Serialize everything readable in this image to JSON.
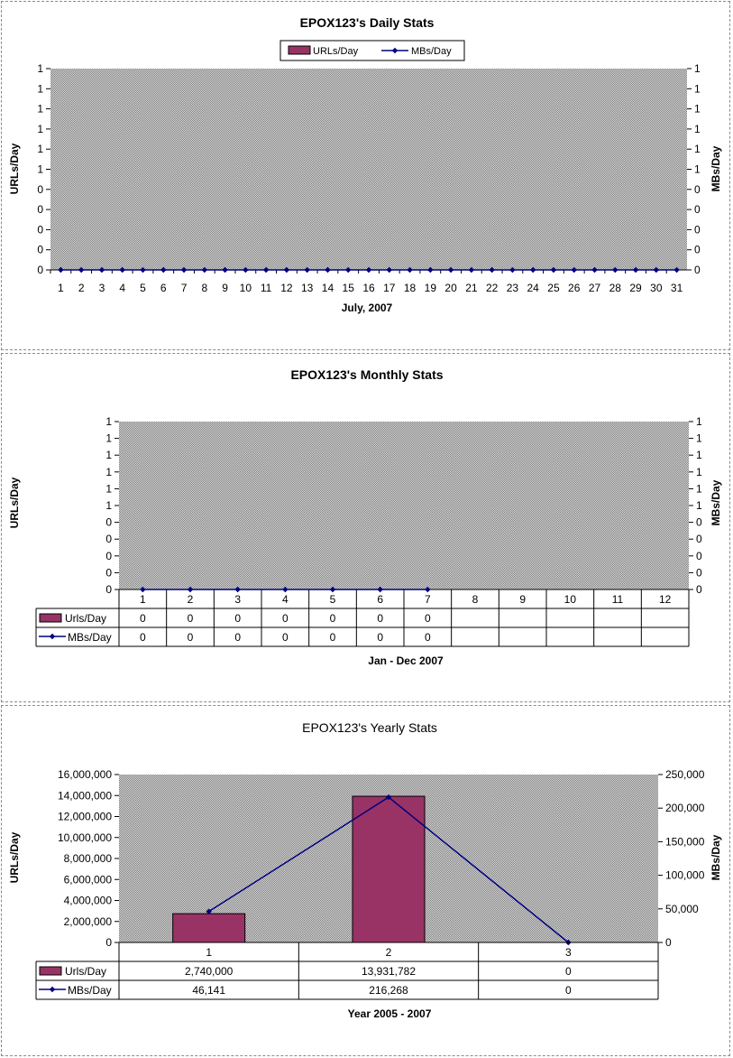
{
  "colors": {
    "bar_fill": "#993366",
    "line": "#000080",
    "plot_bg": "#c0c0c0",
    "dot": "#808080"
  },
  "legend": {
    "urls_label": "URLs/Day",
    "mbs_label": "MBs/Day"
  },
  "table_rows": {
    "urls_label": "Urls/Day",
    "mbs_label": "MBs/Day"
  },
  "chart_data": [
    {
      "id": "daily",
      "type": "bar",
      "title": "EPOX123's Daily Stats",
      "xlabel": "July, 2007",
      "ylabel": "URLs/Day",
      "ylabel2": "MBs/Day",
      "legend_position": "top",
      "grid": false,
      "categories": [
        "1",
        "2",
        "3",
        "4",
        "5",
        "6",
        "7",
        "8",
        "9",
        "10",
        "11",
        "12",
        "13",
        "14",
        "15",
        "16",
        "17",
        "18",
        "19",
        "20",
        "21",
        "22",
        "23",
        "24",
        "25",
        "26",
        "27",
        "28",
        "29",
        "30",
        "31"
      ],
      "y_ticks": [
        "0",
        "0",
        "0",
        "0",
        "0",
        "1",
        "1",
        "1",
        "1",
        "1",
        "1"
      ],
      "y2_ticks": [
        "0",
        "0",
        "0",
        "0",
        "0",
        "1",
        "1",
        "1",
        "1",
        "1",
        "1"
      ],
      "series": [
        {
          "name": "URLs/Day",
          "type": "bar",
          "axis": "left",
          "values": [
            0,
            0,
            0,
            0,
            0,
            0,
            0,
            0,
            0,
            0,
            0,
            0,
            0,
            0,
            0,
            0,
            0,
            0,
            0,
            0,
            0,
            0,
            0,
            0,
            0,
            0,
            0,
            0,
            0,
            0,
            0
          ]
        },
        {
          "name": "MBs/Day",
          "type": "line",
          "axis": "right",
          "values": [
            0,
            0,
            0,
            0,
            0,
            0,
            0,
            0,
            0,
            0,
            0,
            0,
            0,
            0,
            0,
            0,
            0,
            0,
            0,
            0,
            0,
            0,
            0,
            0,
            0,
            0,
            0,
            0,
            0,
            0,
            0
          ]
        }
      ]
    },
    {
      "id": "monthly",
      "type": "bar",
      "title": "EPOX123's Monthly Stats",
      "xlabel": "Jan - Dec 2007",
      "ylabel": "URLs/Day",
      "ylabel2": "MBs/Day",
      "legend_position": "data-table",
      "grid": false,
      "categories": [
        "1",
        "2",
        "3",
        "4",
        "5",
        "6",
        "7",
        "8",
        "9",
        "10",
        "11",
        "12"
      ],
      "y_ticks": [
        "0",
        "0",
        "0",
        "0",
        "0",
        "1",
        "1",
        "1",
        "1",
        "1",
        "1"
      ],
      "y2_ticks": [
        "0",
        "0",
        "0",
        "0",
        "0",
        "1",
        "1",
        "1",
        "1",
        "1",
        "1"
      ],
      "series": [
        {
          "name": "Urls/Day",
          "type": "bar",
          "axis": "left",
          "values": [
            0,
            0,
            0,
            0,
            0,
            0,
            0,
            null,
            null,
            null,
            null,
            null
          ],
          "table": [
            "0",
            "0",
            "0",
            "0",
            "0",
            "0",
            "0",
            "",
            "",
            "",
            "",
            ""
          ]
        },
        {
          "name": "MBs/Day",
          "type": "line",
          "axis": "right",
          "values": [
            0,
            0,
            0,
            0,
            0,
            0,
            0,
            null,
            null,
            null,
            null,
            null
          ],
          "table": [
            "0",
            "0",
            "0",
            "0",
            "0",
            "0",
            "0",
            "",
            "",
            "",
            "",
            ""
          ]
        }
      ]
    },
    {
      "id": "yearly",
      "type": "bar",
      "title": "EPOX123's Yearly Stats",
      "xlabel": "Year 2005 - 2007",
      "ylabel": "URLs/Day",
      "ylabel2": "MBs/Day",
      "legend_position": "data-table",
      "grid": false,
      "categories": [
        "1",
        "2",
        "3"
      ],
      "ylim": [
        0,
        16000000
      ],
      "y2lim": [
        0,
        250000
      ],
      "y_ticks": [
        "0",
        "2,000,000",
        "4,000,000",
        "6,000,000",
        "8,000,000",
        "10,000,000",
        "12,000,000",
        "14,000,000",
        "16,000,000"
      ],
      "y2_ticks": [
        "0",
        "50,000",
        "100,000",
        "150,000",
        "200,000",
        "250,000"
      ],
      "series": [
        {
          "name": "Urls/Day",
          "type": "bar",
          "axis": "left",
          "values": [
            2740000,
            13931782,
            0
          ],
          "table": [
            "2,740,000",
            "13,931,782",
            "0"
          ]
        },
        {
          "name": "MBs/Day",
          "type": "line",
          "axis": "right",
          "values": [
            46141,
            216268,
            0
          ],
          "table": [
            "46,141",
            "216,268",
            "0"
          ]
        }
      ]
    }
  ]
}
